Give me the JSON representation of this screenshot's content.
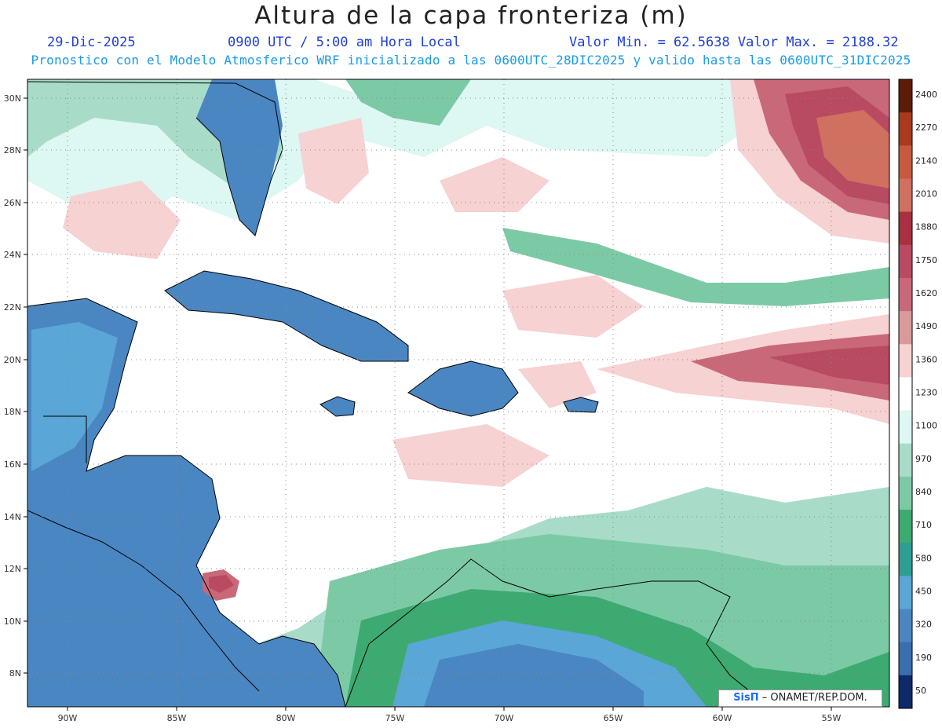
{
  "header": {
    "title": "Altura de la capa fronteriza (m)",
    "date": "29-Dic-2025",
    "time": "0900 UTC / 5:00 am Hora Local",
    "minmax": "Valor Min. = 62.5638  Valor Max. = 2188.32",
    "model_info": "Pronostico con el Modelo Atmosferico WRF inicializado a las 0600UTC_28DIC2025 y valido hasta las  0600UTC_31DIC2025"
  },
  "axes": {
    "lat_labels": [
      "30N",
      "28N",
      "26N",
      "24N",
      "22N",
      "20N",
      "18N",
      "16N",
      "14N",
      "12N",
      "10N",
      "8N"
    ],
    "lon_labels": [
      "90W",
      "85W",
      "80W",
      "75W",
      "70W",
      "65W",
      "60W",
      "55W"
    ]
  },
  "legend": {
    "levels": [
      "2400",
      "2270",
      "2140",
      "2010",
      "1880",
      "1750",
      "1620",
      "1490",
      "1360",
      "1230",
      "1100",
      "970",
      "840",
      "710",
      "580",
      "450",
      "320",
      "190",
      "50"
    ],
    "colors": [
      "#5c1c08",
      "#a93a1e",
      "#c65a3e",
      "#cf7060",
      "#a83040",
      "#b84a62",
      "#c96878",
      "#d99a9a",
      "#f6d2d2",
      "#ffffff",
      "#ddf7f2",
      "#a8dcc8",
      "#7ccaa5",
      "#3daa72",
      "#2e9e92",
      "#5aa6d6",
      "#4a86c2",
      "#3a6eae",
      "#0e2a6a"
    ]
  },
  "credit": {
    "brand": "SisΠ",
    "text": "– ONAMET/REP.DOM."
  }
}
